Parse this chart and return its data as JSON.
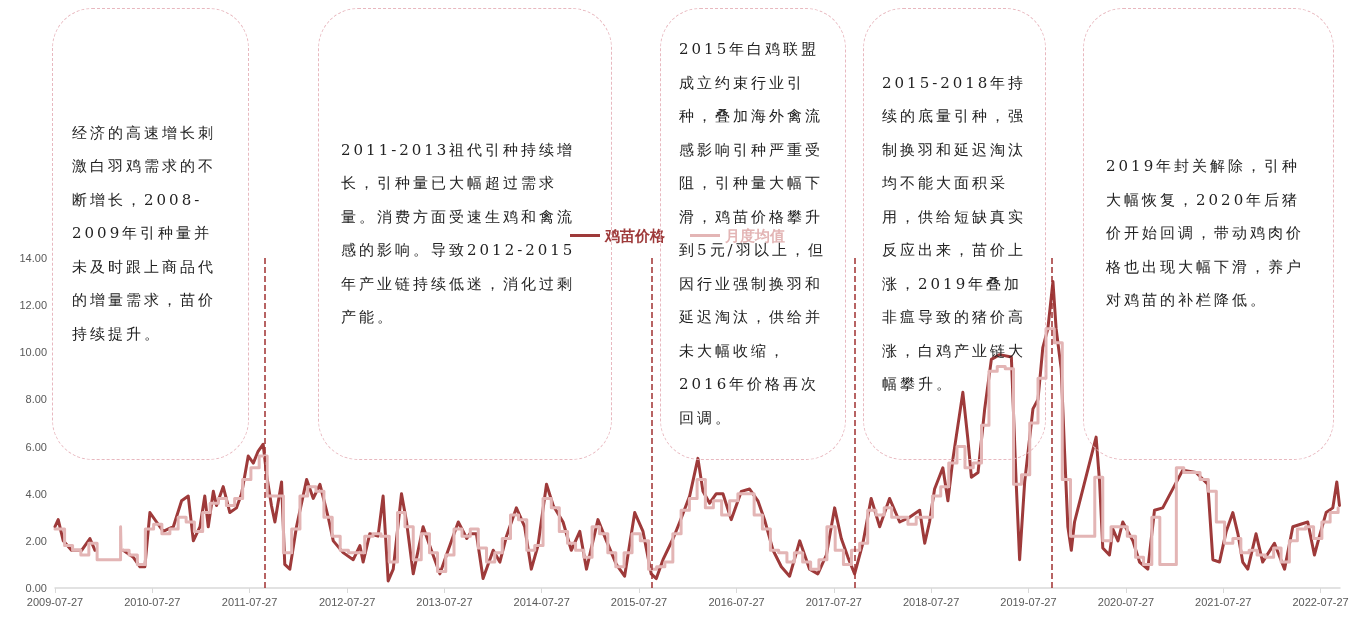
{
  "chart_data": {
    "type": "line",
    "annotations": [
      "经济的高速增长刺激白羽鸡需求的不断增长，2008-2009年引种量并未及时跟上商品代的增量需求，苗价持续提升。",
      "2011-2013祖代引种持续增长，引种量已大幅超过需求量。消费方面受速生鸡和禽流感的影响。导致2012-2015年产业链持续低迷，消化过剩产能。",
      "2015年白鸡联盟成立约束行业引种，叠加海外禽流感影响引种严重受阻，引种量大幅下滑，鸡苗价格攀升到5元/羽以上，但因行业强制换羽和延迟淘汰，供给并未大幅收缩，2016年价格再次回调。",
      "2015-2018年持续的底量引种，强制换羽和延迟淘汰均不能大面积采用，供给短缺真实反应出来，苗价上涨，2019年叠加非瘟导致的猪价高涨，白鸡产业链大幅攀升。",
      "2019年封关解除，引种大幅恢复，2020年后猪价开始回调，带动鸡肉价格也出现大幅下滑，养户对鸡苗的补栏降低。"
    ],
    "xlim": [
      "2009-07-27",
      "2022-10-08"
    ],
    "xticks": [
      "2009-07-27",
      "2010-07-27",
      "2011-07-27",
      "2012-07-27",
      "2013-07-27",
      "2014-07-27",
      "2015-07-27",
      "2016-07-27",
      "2017-07-27",
      "2018-07-27",
      "2019-07-27",
      "2020-07-27",
      "2021-07-27",
      "2022-07-27"
    ],
    "ylim": [
      0,
      14
    ],
    "yticks": [
      {
        "value": 0,
        "label": "0.00"
      },
      {
        "value": 2,
        "label": "2.00"
      },
      {
        "value": 4,
        "label": "4.00"
      },
      {
        "value": 6,
        "label": "6.00"
      },
      {
        "value": 8,
        "label": "8.00"
      },
      {
        "value": 10,
        "label": "10.00"
      },
      {
        "value": 12,
        "label": "12.00"
      },
      {
        "value": 14,
        "label": "14.00"
      }
    ],
    "grid": false,
    "legend": "top",
    "marker": "none",
    "line_style": "solid",
    "ref_lines": [
      {
        "axis": "x",
        "value": "2011-09-22",
        "color": "#a03030",
        "line_style": "dashed"
      },
      {
        "axis": "x",
        "value": "2015-09-11",
        "color": "#a03030",
        "line_style": "dashed"
      },
      {
        "axis": "x",
        "value": "2017-10-15",
        "color": "#a03030",
        "line_style": "dashed"
      },
      {
        "axis": "x",
        "value": "2019-10-24",
        "color": "#a03030",
        "line_style": "dashed"
      }
    ],
    "series": [
      {
        "name": "鸡苗价格",
        "color": "#9e3a3a",
        "x": [
          "2009-07-27",
          "2009-08-08",
          "2009-08-27",
          "2009-09-27",
          "2009-11-04",
          "2009-12-05",
          "2009-12-24",
          "2010-02-15",
          "2010-04-09",
          "2010-05-17",
          "2010-06-11",
          "2010-06-29",
          "2010-07-18",
          "2010-08-12",
          "2010-09-06",
          "2010-10-14",
          "2010-11-14",
          "2010-12-09",
          "2010-12-28",
          "2011-01-22",
          "2011-02-09",
          "2011-02-22",
          "2011-03-13",
          "2011-03-25",
          "2011-04-19",
          "2011-05-14",
          "2011-06-08",
          "2011-06-27",
          "2011-07-22",
          "2011-08-10",
          "2011-08-28",
          "2011-09-16",
          "2011-09-29",
          "2011-10-17",
          "2011-10-30",
          "2011-11-24",
          "2011-12-06",
          "2011-12-25",
          "2012-01-19",
          "2012-02-26",
          "2012-03-22",
          "2012-04-16",
          "2012-05-17",
          "2012-06-05",
          "2012-07-12",
          "2012-08-19",
          "2012-09-13",
          "2012-09-25",
          "2012-10-20",
          "2012-11-20",
          "2012-12-09",
          "2012-12-28",
          "2013-01-16",
          "2013-02-16",
          "2013-03-07",
          "2013-04-01",
          "2013-05-08",
          "2013-06-08",
          "2013-07-10",
          "2013-08-10",
          "2013-09-17",
          "2013-10-19",
          "2013-10-30",
          "2013-11-24",
          "2013-12-19",
          "2014-01-26",
          "2014-02-20",
          "2014-03-17",
          "2014-04-23",
          "2014-05-24",
          "2014-06-18",
          "2014-07-13",
          "2014-08-14",
          "2014-09-08",
          "2014-10-15",
          "2014-11-15",
          "2014-12-17",
          "2015-01-11",
          "2015-02-23",
          "2015-03-27",
          "2015-05-03",
          "2015-06-03",
          "2015-07-11",
          "2015-08-11",
          "2015-09-11",
          "2015-09-30",
          "2015-10-25",
          "2015-12-02",
          "2015-12-27",
          "2016-02-02",
          "2016-03-04",
          "2016-03-23",
          "2016-04-17",
          "2016-05-12",
          "2016-06-06",
          "2016-07-07",
          "2016-08-14",
          "2016-09-14",
          "2016-10-15",
          "2016-11-09",
          "2016-12-11",
          "2017-01-11",
          "2017-02-11",
          "2017-03-21",
          "2017-04-27",
          "2017-05-28",
          "2017-06-29",
          "2017-07-30",
          "2017-08-24",
          "2017-09-18",
          "2017-10-13",
          "2017-11-13",
          "2017-12-14",
          "2018-01-15",
          "2018-02-21",
          "2018-03-31",
          "2018-05-07",
          "2018-06-14",
          "2018-07-03",
          "2018-07-21",
          "2018-08-09",
          "2018-09-09",
          "2018-09-28",
          "2018-10-17",
          "2018-11-23",
          "2018-12-12",
          "2018-12-25",
          "2019-01-19",
          "2019-02-13",
          "2019-03-10",
          "2019-04-10",
          "2019-05-24",
          "2019-06-11",
          "2019-06-24",
          "2019-07-13",
          "2019-08-13",
          "2019-09-01",
          "2019-09-19",
          "2019-10-08",
          "2019-10-27",
          "2019-11-08",
          "2019-11-27",
          "2019-12-10",
          "2019-12-22",
          "2020-01-04",
          "2020-01-16",
          "2020-04-06",
          "2020-04-19",
          "2020-05-01",
          "2020-05-26",
          "2020-06-08",
          "2020-06-27",
          "2020-07-15",
          "2020-08-22",
          "2020-09-16",
          "2020-10-17",
          "2020-11-11",
          "2020-12-12",
          "2021-02-25",
          "2021-04-16",
          "2021-05-30",
          "2021-06-18",
          "2021-07-13",
          "2021-08-07",
          "2021-09-01",
          "2021-09-20",
          "2021-10-08",
          "2021-10-27",
          "2021-11-27",
          "2021-12-22",
          "2022-02-04",
          "2022-03-14",
          "2022-04-14",
          "2022-06-09",
          "2022-07-04",
          "2022-07-23",
          "2022-08-17",
          "2022-09-11",
          "2022-09-26",
          "2022-10-06"
        ],
        "values": [
          2.6,
          2.9,
          2.0,
          1.6,
          1.6,
          2.1,
          1.6,
          null,
          1.6,
          1.3,
          0.9,
          0.9,
          3.2,
          2.8,
          2.4,
          2.6,
          3.7,
          3.9,
          2.0,
          2.6,
          3.9,
          2.6,
          4.1,
          3.5,
          4.3,
          3.2,
          3.4,
          4.0,
          5.6,
          5.3,
          5.8,
          6.1,
          4.8,
          3.5,
          2.8,
          4.5,
          1.0,
          0.8,
          2.6,
          4.6,
          3.8,
          4.4,
          3.0,
          2.0,
          1.5,
          1.2,
          1.8,
          1.1,
          2.3,
          2.2,
          3.9,
          0.3,
          0.8,
          4.0,
          2.8,
          0.6,
          2.6,
          1.6,
          0.6,
          1.6,
          2.8,
          2.1,
          2.3,
          2.3,
          0.4,
          1.6,
          1.1,
          2.2,
          3.4,
          2.6,
          0.8,
          1.8,
          4.4,
          3.5,
          2.8,
          1.6,
          2.4,
          0.8,
          2.9,
          2.0,
          1.0,
          0.5,
          3.2,
          2.4,
          0.6,
          0.4,
          1.2,
          2.1,
          2.8,
          3.9,
          5.5,
          4.1,
          3.6,
          4.0,
          4.0,
          2.9,
          4.1,
          4.2,
          3.7,
          2.9,
          1.6,
          0.9,
          0.5,
          2.0,
          0.8,
          0.6,
          1.4,
          3.4,
          2.1,
          1.3,
          0.6,
          1.9,
          3.8,
          2.6,
          3.8,
          2.8,
          3.0,
          3.3,
          1.9,
          2.8,
          4.2,
          5.1,
          3.7,
          5.5,
          8.3,
          6.3,
          4.7,
          4.9,
          7.6,
          9.7,
          9.9,
          9.8,
          4.5,
          1.2,
          4.5,
          7.6,
          8.0,
          10.2,
          11.0,
          13.0,
          11.0,
          9.3,
          5.7,
          2.6,
          1.6,
          2.8,
          6.4,
          4.5,
          1.7,
          1.4,
          2.5,
          2.0,
          2.8,
          2.0,
          1.1,
          0.8,
          3.3,
          3.4,
          5.0,
          4.9,
          4.4,
          1.2,
          1.1,
          2.4,
          3.2,
          2.3,
          1.1,
          0.8,
          2.3,
          1.1,
          1.9,
          0.8,
          2.6,
          2.8,
          1.4,
          2.2,
          3.2,
          3.4,
          4.5,
          3.5
        ]
      },
      {
        "name": "月度均值",
        "color": "#e3b5b5",
        "type": "step",
        "x": [
          "2009-07-27",
          "2009-09",
          "2009-10",
          "2009-11",
          "2009-12",
          "2010-01",
          "2010-03-30",
          "2010-04",
          "2010-05",
          "2010-06",
          "2010-07",
          "2010-08",
          "2010-09",
          "2010-10",
          "2010-11",
          "2010-12",
          "2011-01",
          "2011-02",
          "2011-03",
          "2011-04",
          "2011-05",
          "2011-06",
          "2011-07",
          "2011-08",
          "2011-09",
          "2011-10",
          "2011-11",
          "2011-12",
          "2012-01",
          "2012-02",
          "2012-03",
          "2012-04",
          "2012-05",
          "2012-06",
          "2012-07",
          "2012-08",
          "2012-09",
          "2012-10",
          "2012-11",
          "2012-12",
          "2013-01",
          "2013-02",
          "2013-03",
          "2013-04",
          "2013-05",
          "2013-06",
          "2013-07",
          "2013-08",
          "2013-09",
          "2013-10",
          "2013-11",
          "2013-12",
          "2014-01",
          "2014-02",
          "2014-03",
          "2014-04",
          "2014-05",
          "2014-06",
          "2014-07",
          "2014-08",
          "2014-09",
          "2014-10",
          "2014-11",
          "2014-12",
          "2015-01",
          "2015-02",
          "2015-03",
          "2015-04",
          "2015-05",
          "2015-06",
          "2015-07",
          "2015-08",
          "2015-09",
          "2015-10",
          "2015-11",
          "2015-12",
          "2016-01",
          "2016-02",
          "2016-03",
          "2016-04",
          "2016-05",
          "2016-06",
          "2016-07",
          "2016-08",
          "2016-09",
          "2016-10",
          "2016-11",
          "2016-12",
          "2017-01",
          "2017-02",
          "2017-03",
          "2017-04",
          "2017-05",
          "2017-06",
          "2017-07",
          "2017-08",
          "2017-09",
          "2017-10",
          "2017-11",
          "2017-12",
          "2018-01",
          "2018-02",
          "2018-03",
          "2018-04",
          "2018-05",
          "2018-06",
          "2018-07",
          "2018-08",
          "2018-09",
          "2018-10",
          "2018-11",
          "2018-12",
          "2019-01",
          "2019-02",
          "2019-03",
          "2019-04",
          "2019-05",
          "2019-06",
          "2019-07",
          "2019-08",
          "2019-09",
          "2019-10",
          "2019-11",
          "2019-12",
          "2020-01",
          "2020-04",
          "2020-05",
          "2020-06",
          "2020-07",
          "2020-08",
          "2020-09",
          "2020-10",
          "2020-11",
          "2020-12",
          "2021-02",
          "2021-03",
          "2021-04",
          "2021-05",
          "2021-06",
          "2021-07",
          "2021-08",
          "2021-09",
          "2021-10",
          "2021-11",
          "2021-12",
          "2022-01",
          "2022-02",
          "2022-03",
          "2022-04",
          "2022-05",
          "2022-06",
          "2022-07",
          "2022-08",
          "2022-09",
          "2022-10"
        ],
        "values": [
          2.5,
          1.8,
          1.6,
          1.4,
          1.9,
          1.2,
          2.6,
          1.6,
          1.4,
          1.0,
          2.5,
          2.7,
          2.3,
          2.5,
          3.0,
          2.8,
          2.4,
          3.2,
          3.6,
          3.8,
          3.5,
          3.8,
          4.6,
          5.1,
          5.6,
          3.9,
          3.9,
          1.5,
          2.5,
          3.9,
          4.3,
          4.1,
          3.0,
          2.2,
          1.6,
          1.5,
          1.5,
          2.2,
          2.3,
          2.2,
          1.1,
          3.2,
          2.6,
          1.2,
          2.3,
          1.5,
          0.7,
          1.4,
          2.5,
          2.2,
          2.5,
          1.7,
          1.1,
          1.5,
          2.1,
          3.1,
          2.9,
          1.6,
          1.8,
          3.8,
          3.4,
          2.4,
          1.9,
          1.6,
          1.3,
          2.6,
          2.3,
          1.5,
          0.9,
          1.5,
          2.3,
          2.0,
          0.8,
          0.9,
          1.1,
          2.3,
          3.3,
          3.8,
          4.6,
          3.4,
          3.7,
          3.1,
          3.7,
          4.0,
          4.0,
          3.1,
          2.5,
          1.6,
          1.5,
          1.1,
          1.5,
          1.1,
          0.8,
          1.2,
          2.6,
          1.6,
          1.0,
          1.6,
          1.9,
          3.3,
          3.1,
          3.4,
          3.0,
          3.0,
          2.7,
          3.0,
          3.0,
          3.9,
          4.3,
          5.3,
          6.0,
          5.1,
          5.3,
          6.9,
          9.2,
          9.4,
          9.3,
          4.4,
          4.8,
          7.0,
          8.9,
          11.0,
          10.4,
          4.6,
          2.2,
          4.7,
          2.0,
          2.6,
          2.6,
          2.2,
          1.3,
          1.0,
          3.0,
          1.0,
          5.1,
          4.9,
          4.9,
          4.6,
          4.1,
          2.8,
          1.9,
          2.1,
          1.5,
          1.6,
          1.4,
          1.3,
          1.7,
          1.1,
          2.0,
          2.5,
          2.6,
          2.1,
          2.8,
          3.2,
          3.4
        ]
      }
    ]
  }
}
